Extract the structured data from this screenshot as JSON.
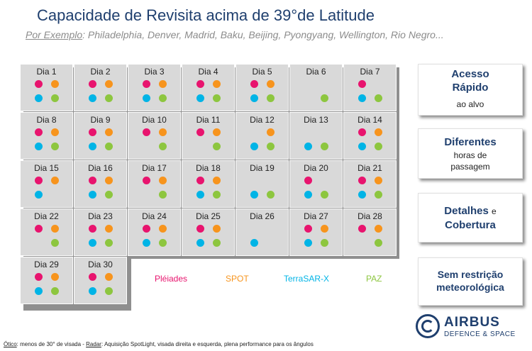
{
  "title": "Capacidade de Revisita acima de 39°de Latitude",
  "subtitle": {
    "prefix": "Por Exemplo",
    "text": ": Philadelphia, Denver, Madrid, Baku, Beijing, Pyongyang, Wellington, Rio Negro..."
  },
  "colors": {
    "pleiades": "#e8146e",
    "spot": "#f7941d",
    "terrasar": "#00b4e6",
    "paz": "#8dc63f"
  },
  "days": [
    {
      "label": "Dia 1",
      "p": true,
      "s": true,
      "t": true,
      "z": true
    },
    {
      "label": "Dia 2",
      "p": true,
      "s": true,
      "t": true,
      "z": true
    },
    {
      "label": "Dia 3",
      "p": true,
      "s": true,
      "t": true,
      "z": true
    },
    {
      "label": "Dia 4",
      "p": true,
      "s": true,
      "t": true,
      "z": true
    },
    {
      "label": "Dia 5",
      "p": true,
      "s": true,
      "t": true,
      "z": true
    },
    {
      "label": "Dia 6",
      "p": false,
      "s": false,
      "t": false,
      "z": true
    },
    {
      "label": "Dia 7",
      "p": true,
      "s": false,
      "t": true,
      "z": true
    },
    {
      "label": "Dia 8",
      "p": true,
      "s": true,
      "t": true,
      "z": true
    },
    {
      "label": "Dia 9",
      "p": true,
      "s": true,
      "t": true,
      "z": true
    },
    {
      "label": "Dia 10",
      "p": true,
      "s": true,
      "t": false,
      "z": true
    },
    {
      "label": "Dia 11",
      "p": true,
      "s": true,
      "t": false,
      "z": true
    },
    {
      "label": "Dia 12",
      "p": false,
      "s": true,
      "t": true,
      "z": true
    },
    {
      "label": "Dia 13",
      "p": false,
      "s": false,
      "t": true,
      "z": true
    },
    {
      "label": "Dia 14",
      "p": true,
      "s": true,
      "t": true,
      "z": true
    },
    {
      "label": "Dia 15",
      "p": true,
      "s": true,
      "t": true,
      "z": false
    },
    {
      "label": "Dia 16",
      "p": true,
      "s": true,
      "t": true,
      "z": true
    },
    {
      "label": "Dia 17",
      "p": true,
      "s": true,
      "t": false,
      "z": true
    },
    {
      "label": "Dia 18",
      "p": true,
      "s": true,
      "t": true,
      "z": true
    },
    {
      "label": "Dia 19",
      "p": false,
      "s": false,
      "t": true,
      "z": true
    },
    {
      "label": "Dia 20",
      "p": true,
      "s": false,
      "t": true,
      "z": true
    },
    {
      "label": "Dia 21",
      "p": true,
      "s": true,
      "t": true,
      "z": true
    },
    {
      "label": "Dia 22",
      "p": true,
      "s": true,
      "t": false,
      "z": true
    },
    {
      "label": "Dia 23",
      "p": true,
      "s": true,
      "t": true,
      "z": true
    },
    {
      "label": "Dia 24",
      "p": true,
      "s": true,
      "t": true,
      "z": true
    },
    {
      "label": "Dia 25",
      "p": true,
      "s": true,
      "t": true,
      "z": true
    },
    {
      "label": "Dia 26",
      "p": false,
      "s": false,
      "t": true,
      "z": false
    },
    {
      "label": "Dia 27",
      "p": true,
      "s": true,
      "t": true,
      "z": true
    },
    {
      "label": "Dia 28",
      "p": true,
      "s": true,
      "t": false,
      "z": true
    },
    {
      "label": "Dia 29",
      "p": true,
      "s": true,
      "t": true,
      "z": true
    },
    {
      "label": "Dia 30",
      "p": true,
      "s": true,
      "t": true,
      "z": true
    }
  ],
  "legend": {
    "pleiades": "Pléiades",
    "spot": "SPOT",
    "terrasar": "TerraSAR-X",
    "paz": "PAZ"
  },
  "boxes": {
    "acesso_title": "Acesso Rápido",
    "acesso_sub": "ao alvo",
    "diferentes_title": "Diferentes",
    "diferentes_sub": "horas de passagem",
    "detalhes_1": "Detalhes",
    "detalhes_e": "e",
    "detalhes_2": "Cobertura",
    "sem_title": "Sem restrição meteorológica"
  },
  "logo": {
    "name": "AIRBUS",
    "division": "DEFENCE & SPACE"
  },
  "footer": {
    "otico_label": "Ótico",
    "otico_text": ": menos de 30° de visada - ",
    "radar_label": "Radar",
    "radar_text": ": Aquisição SpotLight, visada direita e esquerda, plena performance para os ângulos"
  }
}
